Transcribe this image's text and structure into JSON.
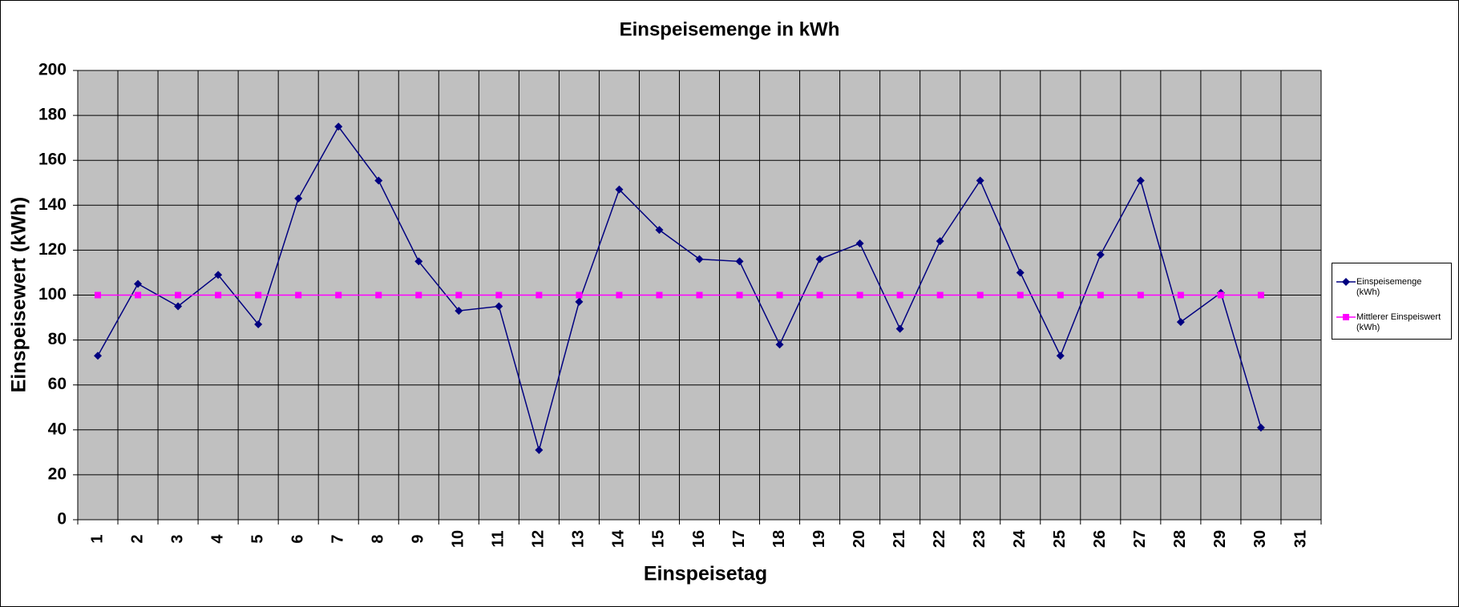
{
  "chart_data": {
    "type": "line",
    "title": "Einspeisemenge in kWh",
    "x_label": "Einspeisetag",
    "y_label": "Einspeisewert  (kWh)",
    "categories": [
      "1",
      "2",
      "3",
      "4",
      "5",
      "6",
      "7",
      "8",
      "9",
      "10",
      "11",
      "12",
      "13",
      "14",
      "15",
      "16",
      "17",
      "18",
      "19",
      "20",
      "21",
      "22",
      "23",
      "24",
      "25",
      "26",
      "27",
      "28",
      "29",
      "30",
      "31"
    ],
    "series": [
      {
        "name": "Einspeisemenge (kWh)",
        "color": "#000080",
        "marker": "diamond",
        "values": [
          73,
          105,
          95,
          109,
          87,
          143,
          175,
          151,
          115,
          93,
          95,
          31,
          97,
          147,
          129,
          116,
          115,
          78,
          116,
          123,
          85,
          124,
          151,
          110,
          73,
          118,
          151,
          88,
          101,
          41,
          null
        ]
      },
      {
        "name": "Mittlerer Einspeiswert (kWh)",
        "color": "#ff00ff",
        "marker": "square",
        "values": [
          100,
          100,
          100,
          100,
          100,
          100,
          100,
          100,
          100,
          100,
          100,
          100,
          100,
          100,
          100,
          100,
          100,
          100,
          100,
          100,
          100,
          100,
          100,
          100,
          100,
          100,
          100,
          100,
          100,
          100,
          null
        ]
      }
    ],
    "ylim": [
      0,
      200
    ],
    "yticks": [
      0,
      20,
      40,
      60,
      80,
      100,
      120,
      140,
      160,
      180,
      200
    ],
    "grid": true,
    "plot_background": "#c0c0c0",
    "legend": "right"
  }
}
